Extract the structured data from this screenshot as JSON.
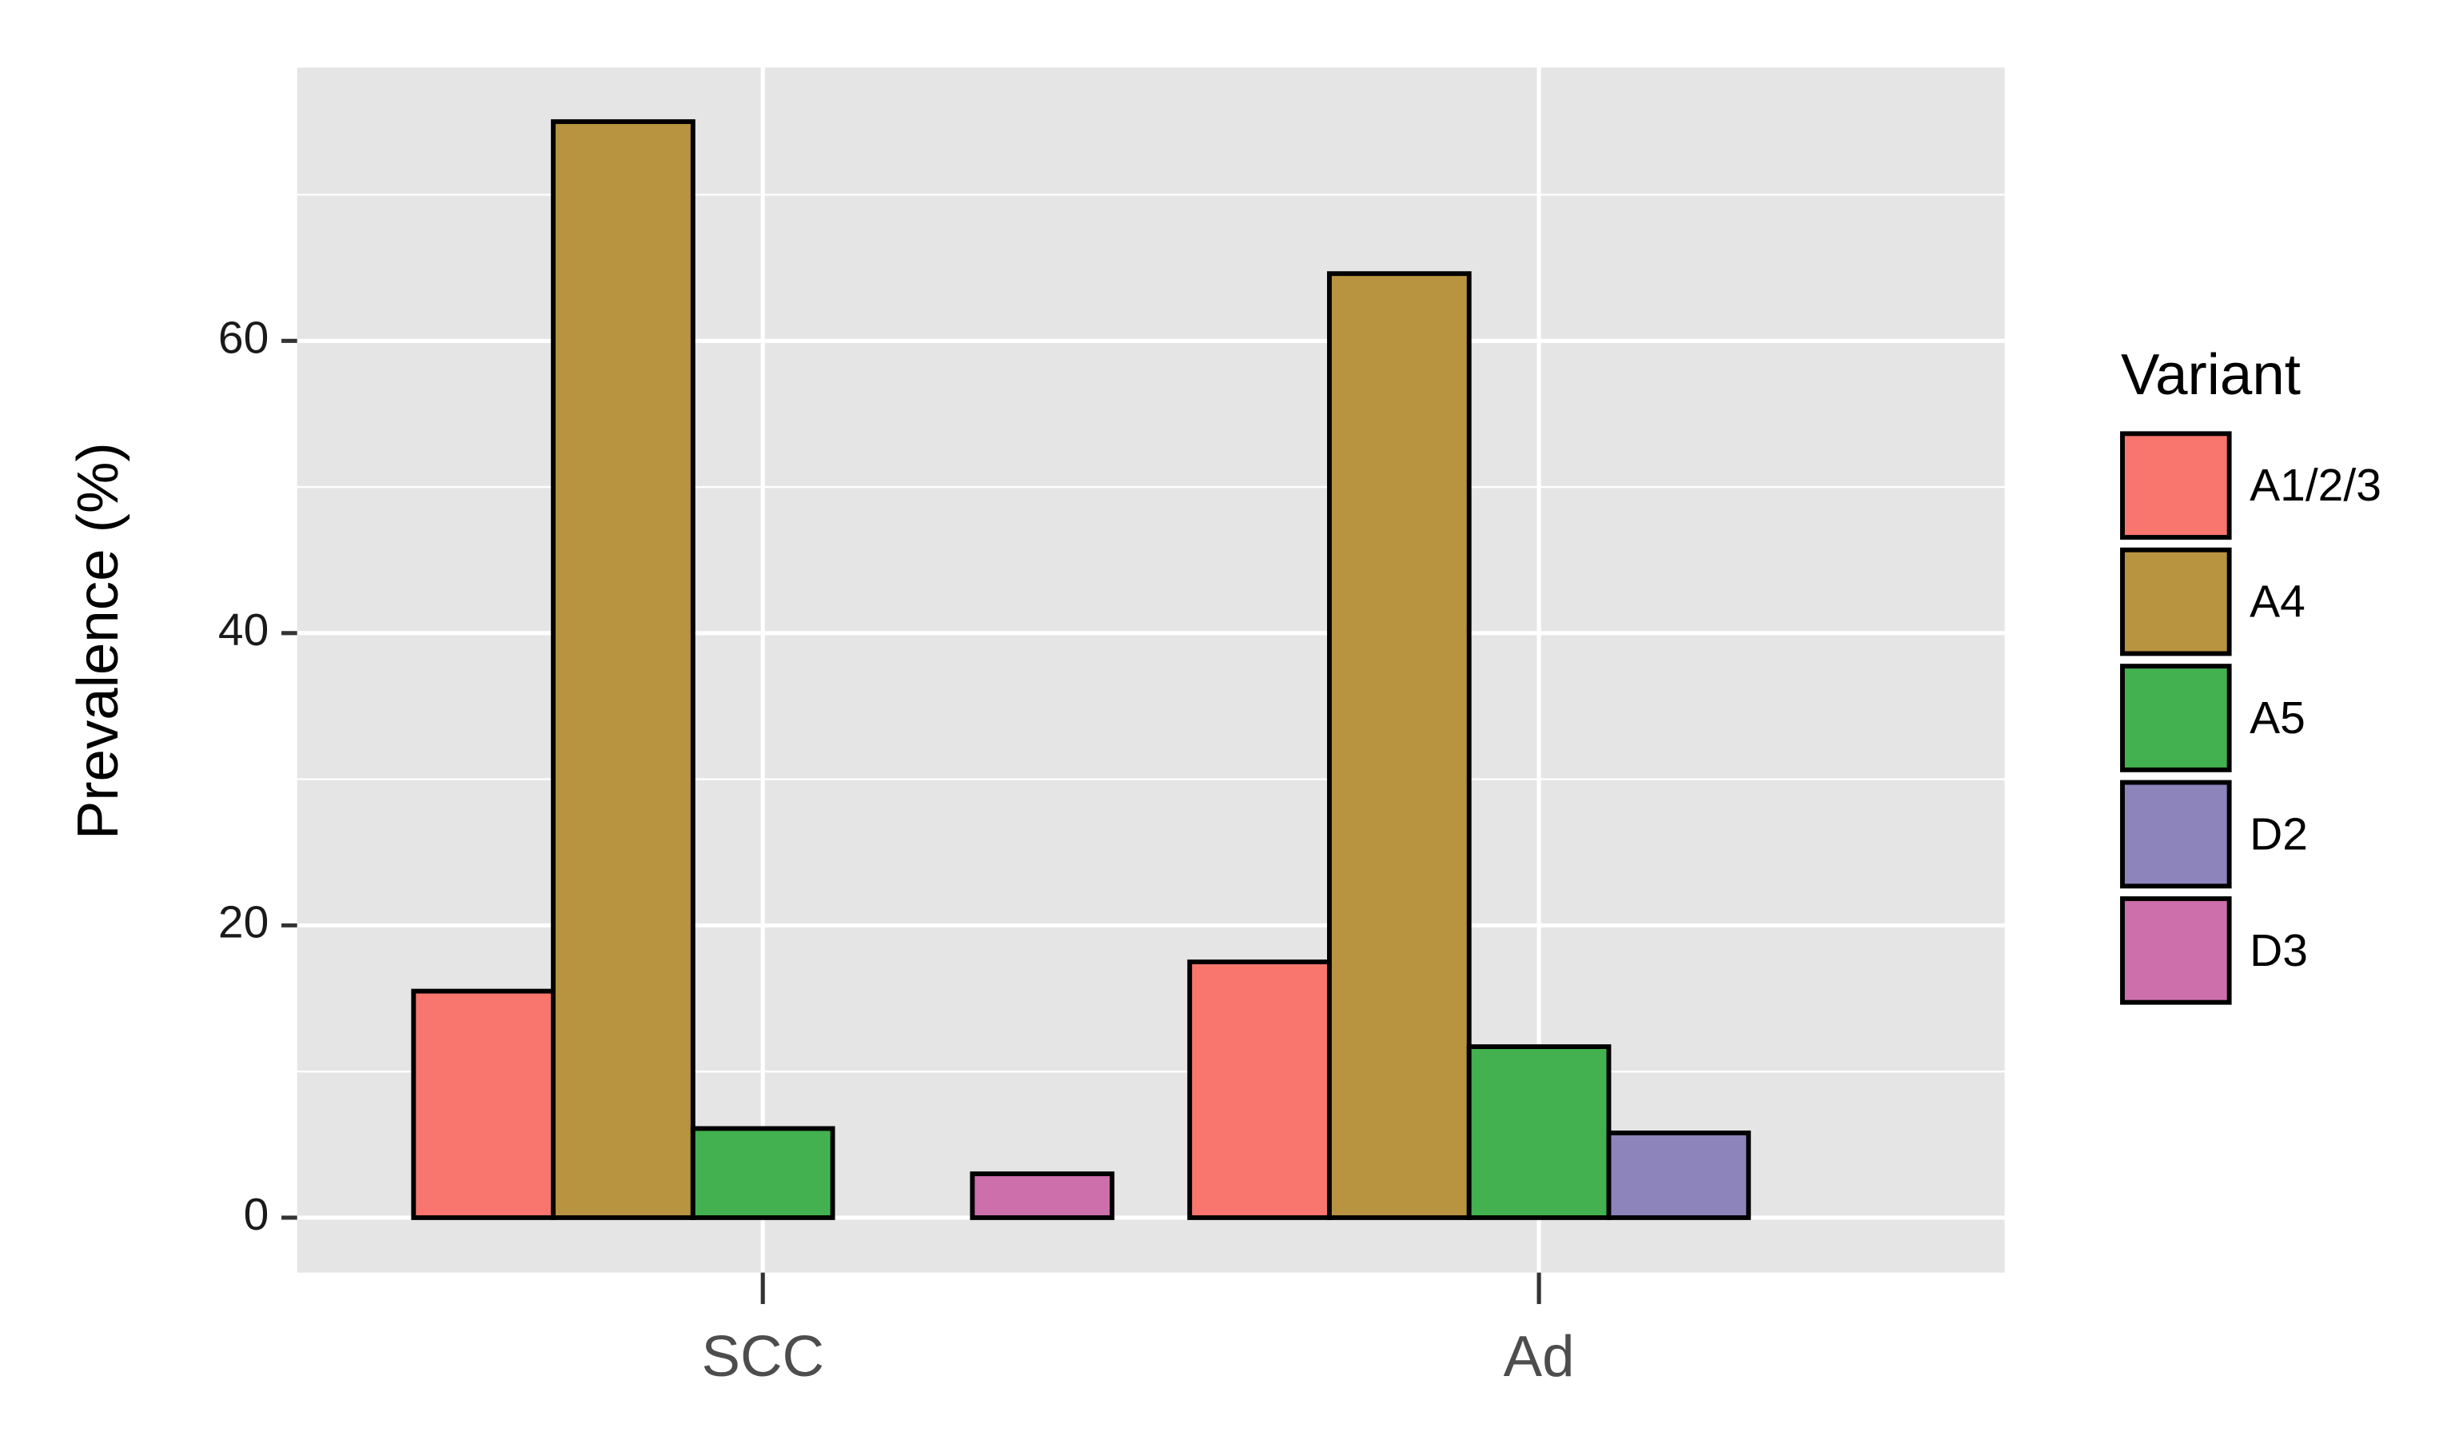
{
  "chart_data": {
    "type": "bar",
    "y_label": "Prevalence (%)",
    "categories": [
      "SCC",
      "Ad"
    ],
    "series": [
      {
        "name": "A1/2/3",
        "color": "#f8766d",
        "values": [
          15.5,
          17.5
        ]
      },
      {
        "name": "A4",
        "color": "#b89340",
        "values": [
          75,
          64.6
        ]
      },
      {
        "name": "A5",
        "color": "#43b14f",
        "values": [
          6.1,
          11.7
        ]
      },
      {
        "name": "D2",
        "color": "#8c84bb",
        "values": [
          0,
          5.8
        ]
      },
      {
        "name": "D3",
        "color": "#cd6fab",
        "values": [
          3,
          0
        ]
      }
    ],
    "ylim": [
      -3.76,
      78.7
    ],
    "yticks": [
      0,
      20,
      40,
      60
    ],
    "yminor": [
      10,
      30,
      50,
      70
    ],
    "grid": true,
    "legend_title": "Variant",
    "legend": "right"
  }
}
